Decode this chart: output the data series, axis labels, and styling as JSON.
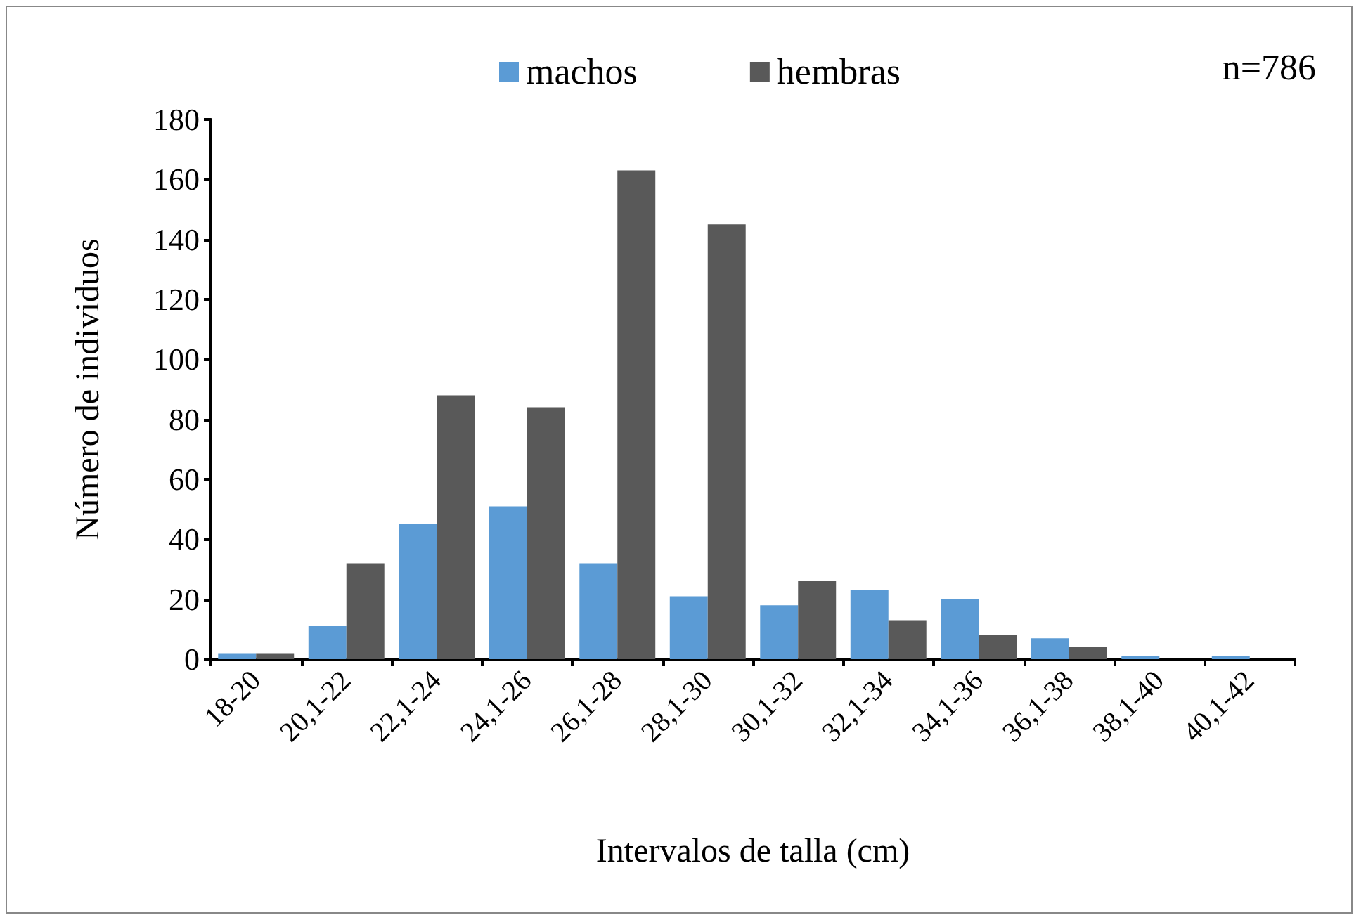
{
  "chart_data": {
    "type": "bar",
    "xlabel": "Intervalos de talla (cm)",
    "ylabel": "Número de individuos",
    "annotations": [
      "n=786"
    ],
    "categories": [
      "18-20",
      "20,1-22",
      "22,1-24",
      "24,1-26",
      "26,1-28",
      "28,1-30",
      "30,1-32",
      "32,1-34",
      "34,1-36",
      "36,1-38",
      "38,1-40",
      "40,1-42"
    ],
    "series": [
      {
        "name": "machos",
        "color": "#5b9bd5",
        "values": [
          2,
          11,
          45,
          51,
          32,
          21,
          18,
          23,
          20,
          7,
          1,
          1
        ]
      },
      {
        "name": "hembras",
        "color": "#595959",
        "values": [
          2,
          32,
          88,
          84,
          163,
          145,
          26,
          13,
          8,
          4,
          0,
          0
        ]
      }
    ],
    "ylim": [
      0,
      180
    ],
    "yticks": [
      0,
      20,
      40,
      60,
      80,
      100,
      120,
      140,
      160,
      180
    ],
    "grid": false,
    "legend": "top"
  }
}
